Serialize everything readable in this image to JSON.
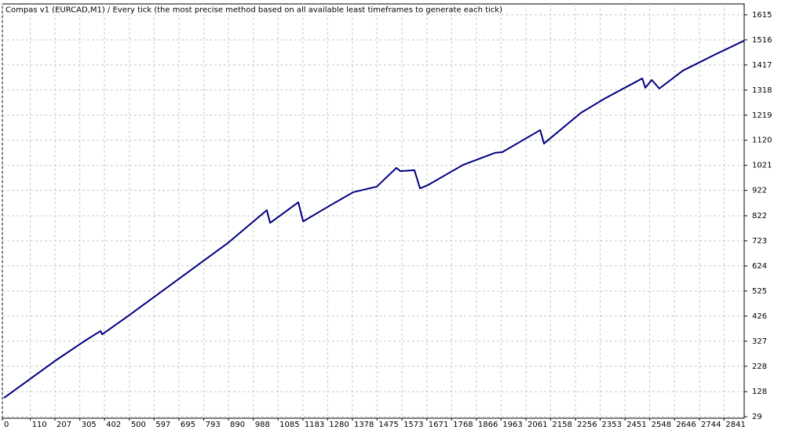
{
  "chart_data": {
    "type": "line",
    "title": "Compas v1 (EURCAD,M1) / Every tick (the most precise method based on all available least timeframes to generate each tick)",
    "x": [
      6,
      207,
      321,
      386,
      393,
      485,
      887,
      1041,
      1054,
      1165,
      1184,
      1289,
      1381,
      1474,
      1551,
      1567,
      1622,
      1644,
      1675,
      1814,
      1938,
      1968,
      2117,
      2132,
      2277,
      2370,
      2519,
      2531,
      2556,
      2586,
      2679,
      2803,
      2920
    ],
    "series": [
      {
        "color": "#000080",
        "values": [
          103,
          249,
          326,
          367,
          354,
          419,
          714,
          844,
          794,
          875,
          800,
          862,
          915,
          937,
          1011,
          998,
          1002,
          930,
          943,
          1023,
          1070,
          1073,
          1160,
          1107,
          1228,
          1284,
          1364,
          1327,
          1358,
          1324,
          1395,
          1457,
          1513
        ]
      }
    ],
    "xlim": [
      0,
      2920
    ],
    "ylim": [
      23,
      1658
    ],
    "xticks": [
      0,
      110,
      207,
      305,
      402,
      500,
      597,
      695,
      793,
      890,
      988,
      1085,
      1183,
      1280,
      1378,
      1475,
      1573,
      1671,
      1768,
      1866,
      1963,
      2061,
      2158,
      2256,
      2353,
      2451,
      2548,
      2646,
      2744,
      2841
    ],
    "yticks": [
      29,
      128,
      228,
      327,
      426,
      525,
      624,
      723,
      822,
      922,
      1021,
      1120,
      1219,
      1318,
      1417,
      1516,
      1615
    ],
    "grid": true
  }
}
